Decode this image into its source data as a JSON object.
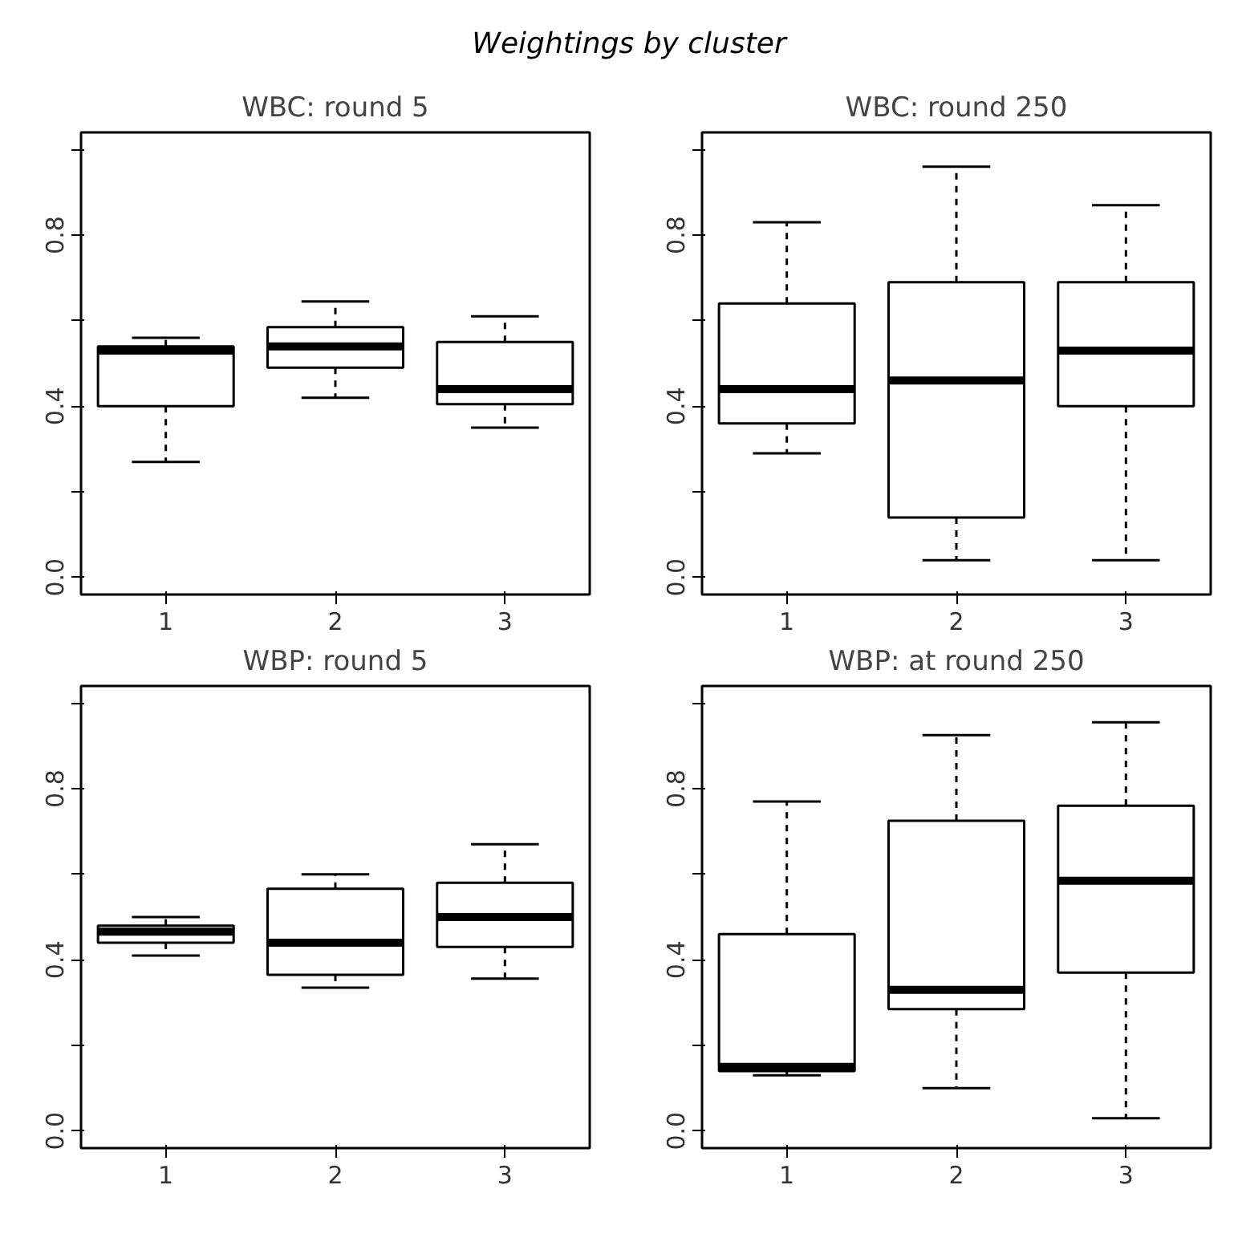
{
  "chart_data": [
    {
      "type": "box",
      "title": "WBC: round 5",
      "annotations": [
        "Weightings by cluster"
      ],
      "categories": [
        "1",
        "2",
        "3"
      ],
      "ylim": [
        -0.04,
        1.04
      ],
      "grid": false,
      "line_style": "dashed",
      "yticks": [
        {
          "value": 0,
          "label": "0.0"
        },
        {
          "value": 0.2,
          "label": null
        },
        {
          "value": 0.4,
          "label": "0.4"
        },
        {
          "value": 0.6,
          "label": null
        },
        {
          "value": 0.8,
          "label": "0.8"
        },
        {
          "value": 1.0,
          "label": null
        }
      ],
      "boxes": [
        {
          "low": 0.27,
          "q1": 0.4,
          "median": 0.53,
          "q3": 0.54,
          "high": 0.56
        },
        {
          "low": 0.42,
          "q1": 0.49,
          "median": 0.54,
          "q3": 0.585,
          "high": 0.645
        },
        {
          "low": 0.35,
          "q1": 0.405,
          "median": 0.44,
          "q3": 0.55,
          "high": 0.61
        }
      ]
    },
    {
      "type": "box",
      "title": "WBC: round 250",
      "categories": [
        "1",
        "2",
        "3"
      ],
      "ylim": [
        -0.04,
        1.04
      ],
      "grid": false,
      "line_style": "dashed",
      "yticks": [
        {
          "value": 0,
          "label": "0.0"
        },
        {
          "value": 0.2,
          "label": null
        },
        {
          "value": 0.4,
          "label": "0.4"
        },
        {
          "value": 0.6,
          "label": null
        },
        {
          "value": 0.8,
          "label": "0.8"
        },
        {
          "value": 1.0,
          "label": null
        }
      ],
      "boxes": [
        {
          "low": 0.29,
          "q1": 0.36,
          "median": 0.44,
          "q3": 0.64,
          "high": 0.83
        },
        {
          "low": 0.04,
          "q1": 0.14,
          "median": 0.46,
          "q3": 0.69,
          "high": 0.96
        },
        {
          "low": 0.04,
          "q1": 0.4,
          "median": 0.53,
          "q3": 0.69,
          "high": 0.87
        }
      ]
    },
    {
      "type": "box",
      "title": "WBP: round 5",
      "categories": [
        "1",
        "2",
        "3"
      ],
      "ylim": [
        -0.04,
        1.04
      ],
      "grid": false,
      "line_style": "dashed",
      "yticks": [
        {
          "value": 0,
          "label": "0.0"
        },
        {
          "value": 0.2,
          "label": null
        },
        {
          "value": 0.4,
          "label": "0.4"
        },
        {
          "value": 0.6,
          "label": null
        },
        {
          "value": 0.8,
          "label": "0.8"
        },
        {
          "value": 1.0,
          "label": null
        }
      ],
      "boxes": [
        {
          "low": 0.41,
          "q1": 0.44,
          "median": 0.466,
          "q3": 0.48,
          "high": 0.5
        },
        {
          "low": 0.335,
          "q1": 0.365,
          "median": 0.44,
          "q3": 0.566,
          "high": 0.6
        },
        {
          "low": 0.356,
          "q1": 0.43,
          "median": 0.5,
          "q3": 0.58,
          "high": 0.67
        }
      ]
    },
    {
      "type": "box",
      "title": "WBP: at round 250",
      "categories": [
        "1",
        "2",
        "3"
      ],
      "ylim": [
        -0.04,
        1.04
      ],
      "grid": false,
      "line_style": "dashed",
      "yticks": [
        {
          "value": 0,
          "label": "0.0"
        },
        {
          "value": 0.2,
          "label": null
        },
        {
          "value": 0.4,
          "label": "0.4"
        },
        {
          "value": 0.6,
          "label": null
        },
        {
          "value": 0.8,
          "label": "0.8"
        },
        {
          "value": 1.0,
          "label": null
        }
      ],
      "boxes": [
        {
          "low": 0.13,
          "q1": 0.14,
          "median": 0.15,
          "q3": 0.46,
          "high": 0.77
        },
        {
          "low": 0.1,
          "q1": 0.285,
          "median": 0.33,
          "q3": 0.725,
          "high": 0.925
        },
        {
          "low": 0.03,
          "q1": 0.37,
          "median": 0.585,
          "q3": 0.76,
          "high": 0.955
        }
      ]
    }
  ]
}
